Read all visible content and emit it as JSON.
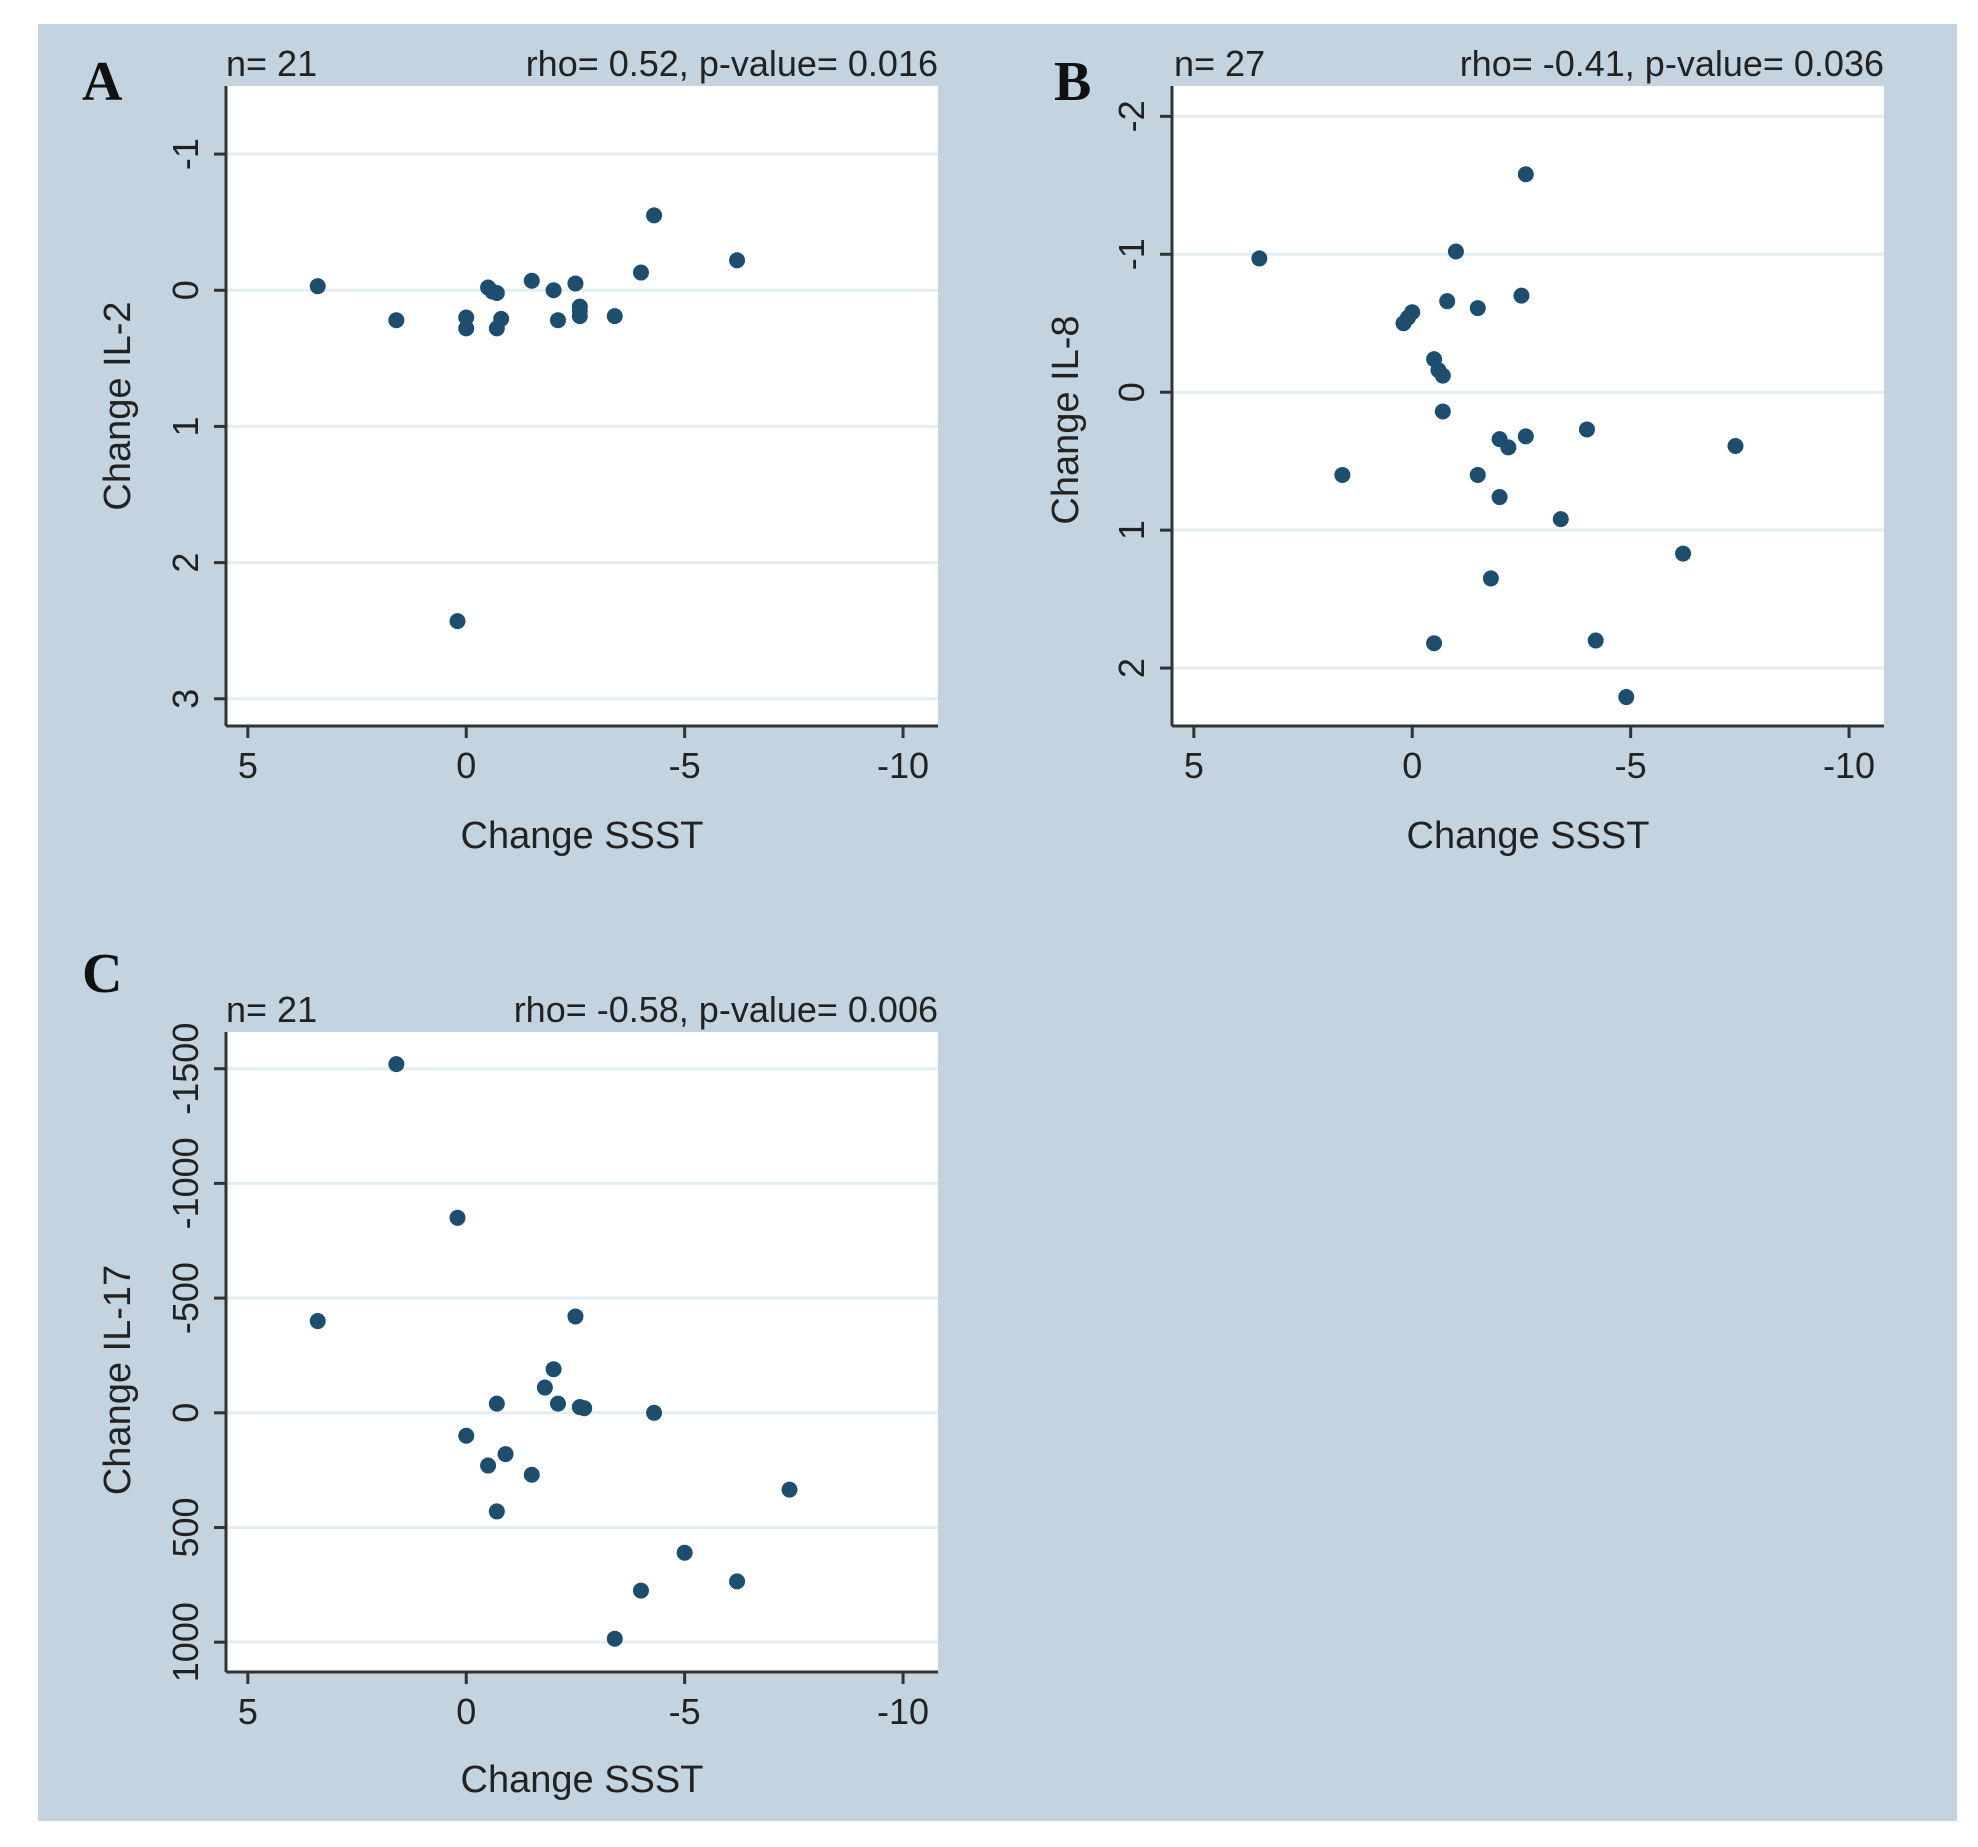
{
  "style": {
    "page_background": "#ffffff",
    "figure_background": "#c3d4e0",
    "plot_background": "#ffffff",
    "grid_color": "#e4edf2",
    "axis_color": "#333333",
    "marker_color": "#1d4e6e"
  },
  "chart_data": [
    {
      "type": "scatter",
      "panel": "A",
      "n_label": "n= 21",
      "stats_label": "rho= 0.52, p-value= 0.016",
      "xlabel": "Change SSST",
      "ylabel": "Change IL-2",
      "x_reversed": true,
      "y_reversed": true,
      "xlim": [
        5.5,
        -10.8
      ],
      "ylim": [
        -1.5,
        3.2
      ],
      "xticks": [
        5,
        0,
        -5,
        -10
      ],
      "xtick_labels": [
        "5",
        "0",
        "-5",
        "-10"
      ],
      "yticks": [
        -1,
        0,
        1,
        2,
        3
      ],
      "ytick_labels": [
        "-1",
        "0",
        "1",
        "2",
        "3"
      ],
      "grid": true,
      "points": [
        {
          "x": 3.4,
          "y": -0.03
        },
        {
          "x": 1.6,
          "y": 0.22
        },
        {
          "x": 0.0,
          "y": 0.2
        },
        {
          "x": 0.0,
          "y": 0.28
        },
        {
          "x": 0.2,
          "y": 2.43
        },
        {
          "x": -0.5,
          "y": -0.02
        },
        {
          "x": -0.6,
          "y": 0.01
        },
        {
          "x": -0.7,
          "y": 0.02
        },
        {
          "x": -0.7,
          "y": 0.28
        },
        {
          "x": -0.8,
          "y": 0.21
        },
        {
          "x": -1.5,
          "y": -0.07
        },
        {
          "x": -2.0,
          "y": 0.0
        },
        {
          "x": -2.1,
          "y": 0.22
        },
        {
          "x": -2.5,
          "y": -0.05
        },
        {
          "x": -2.6,
          "y": 0.15
        },
        {
          "x": -2.6,
          "y": 0.19
        },
        {
          "x": -3.4,
          "y": 0.19
        },
        {
          "x": -4.0,
          "y": -0.13
        },
        {
          "x": -4.3,
          "y": -0.55
        },
        {
          "x": -6.2,
          "y": -0.22
        },
        {
          "x": -2.6,
          "y": 0.12
        }
      ]
    },
    {
      "type": "scatter",
      "panel": "B",
      "n_label": "n= 27",
      "stats_label": "rho= -0.41, p-value= 0.036",
      "xlabel": "Change SSST",
      "ylabel": "Change IL-8",
      "x_reversed": true,
      "y_reversed": false,
      "xlim": [
        5.5,
        -10.8
      ],
      "ylim": [
        -2.22,
        2.42
      ],
      "xticks": [
        5,
        0,
        -5,
        -10
      ],
      "xtick_labels": [
        "5",
        "0",
        "-5",
        "-10"
      ],
      "yticks": [
        -2,
        -1,
        0,
        1,
        2
      ],
      "ytick_labels": [
        "-2",
        "-1",
        "0",
        "1",
        "2"
      ],
      "grid": true,
      "points": [
        {
          "x": 3.5,
          "y": -0.97
        },
        {
          "x": 1.6,
          "y": 0.6
        },
        {
          "x": 0.2,
          "y": -0.5
        },
        {
          "x": 0.1,
          "y": -0.54
        },
        {
          "x": 0.0,
          "y": -0.58
        },
        {
          "x": -0.5,
          "y": 1.82
        },
        {
          "x": -0.5,
          "y": -0.24
        },
        {
          "x": -0.6,
          "y": -0.16
        },
        {
          "x": -0.7,
          "y": -0.12
        },
        {
          "x": -0.7,
          "y": 0.14
        },
        {
          "x": -0.8,
          "y": -0.66
        },
        {
          "x": -1.0,
          "y": -1.02
        },
        {
          "x": -1.5,
          "y": 0.6
        },
        {
          "x": -1.5,
          "y": -0.61
        },
        {
          "x": -1.8,
          "y": 1.35
        },
        {
          "x": -2.0,
          "y": 0.76
        },
        {
          "x": -2.0,
          "y": 0.34
        },
        {
          "x": -2.2,
          "y": 0.4
        },
        {
          "x": -2.5,
          "y": -0.7
        },
        {
          "x": -2.6,
          "y": 0.32
        },
        {
          "x": -2.6,
          "y": -1.58
        },
        {
          "x": -3.4,
          "y": 0.92
        },
        {
          "x": -4.0,
          "y": 0.27
        },
        {
          "x": -4.2,
          "y": 1.8
        },
        {
          "x": -4.9,
          "y": 2.21
        },
        {
          "x": -6.2,
          "y": 1.17
        },
        {
          "x": -7.4,
          "y": 0.39
        }
      ]
    },
    {
      "type": "scatter",
      "panel": "C",
      "n_label": "n= 21",
      "stats_label": "rho= -0.58, p-value= 0.006",
      "xlabel": "Change SSST",
      "ylabel": "Change IL-17",
      "x_reversed": true,
      "y_reversed": true,
      "xlim": [
        5.5,
        -10.8
      ],
      "ylim": [
        -1660,
        1130
      ],
      "xticks": [
        5,
        0,
        -5,
        -10
      ],
      "xtick_labels": [
        "5",
        "0",
        "-5",
        "-10"
      ],
      "yticks": [
        -1500,
        -1000,
        -500,
        0,
        500,
        1000
      ],
      "ytick_labels": [
        "-1500",
        "-1000",
        "-500",
        "0",
        "500",
        "1000"
      ],
      "grid": true,
      "points": [
        {
          "x": 3.4,
          "y": -400
        },
        {
          "x": 1.6,
          "y": -1520
        },
        {
          "x": 0.2,
          "y": -850
        },
        {
          "x": 0.0,
          "y": 100
        },
        {
          "x": -0.5,
          "y": 230
        },
        {
          "x": -0.7,
          "y": -40
        },
        {
          "x": -0.7,
          "y": 430
        },
        {
          "x": -0.9,
          "y": 180
        },
        {
          "x": -1.5,
          "y": 270
        },
        {
          "x": -1.8,
          "y": -110
        },
        {
          "x": -2.0,
          "y": -190
        },
        {
          "x": -2.1,
          "y": -40
        },
        {
          "x": -2.5,
          "y": -420
        },
        {
          "x": -2.6,
          "y": -25
        },
        {
          "x": -2.7,
          "y": -20
        },
        {
          "x": -3.4,
          "y": 985
        },
        {
          "x": -4.0,
          "y": 775
        },
        {
          "x": -4.3,
          "y": 0
        },
        {
          "x": -5.0,
          "y": 610
        },
        {
          "x": -6.2,
          "y": 735
        },
        {
          "x": -7.4,
          "y": 335
        }
      ]
    }
  ]
}
